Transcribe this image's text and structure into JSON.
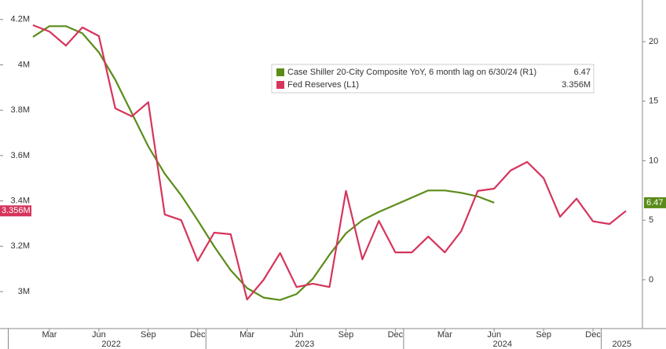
{
  "chart_data": {
    "type": "line",
    "x": [
      "2022-02",
      "2022-03",
      "2022-04",
      "2022-05",
      "2022-06",
      "2022-07",
      "2022-08",
      "2022-09",
      "2022-10",
      "2022-11",
      "2022-12",
      "2023-01",
      "2023-02",
      "2023-03",
      "2023-04",
      "2023-05",
      "2023-06",
      "2023-07",
      "2023-08",
      "2023-09",
      "2023-10",
      "2023-11",
      "2023-12",
      "2024-01",
      "2024-02",
      "2024-03",
      "2024-04",
      "2024-05",
      "2024-06",
      "2024-07",
      "2024-08",
      "2024-09",
      "2024-10",
      "2024-11",
      "2024-12",
      "2025-01",
      "2025-02"
    ],
    "xlim": [
      "2022-01",
      "2025-03"
    ],
    "xticks": [
      {
        "value": "2022-03",
        "label": "Mar"
      },
      {
        "value": "2022-06",
        "label": "Jun"
      },
      {
        "value": "2022-09",
        "label": "Sep"
      },
      {
        "value": "2022-12",
        "label": "Dec"
      },
      {
        "value": "2023-03",
        "label": "Mar"
      },
      {
        "value": "2023-06",
        "label": "Jun"
      },
      {
        "value": "2023-09",
        "label": "Sep"
      },
      {
        "value": "2023-12",
        "label": "Dec"
      },
      {
        "value": "2024-03",
        "label": "Mar"
      },
      {
        "value": "2024-06",
        "label": "Jun"
      },
      {
        "value": "2024-09",
        "label": "Sep"
      },
      {
        "value": "2024-12",
        "label": "Dec"
      }
    ],
    "years": [
      "2022",
      "2023",
      "2024",
      "2025"
    ],
    "ylim": [
      2.837,
      4.286
    ],
    "yticks": [
      {
        "value": 3,
        "label": "3M"
      },
      {
        "value": 3.2,
        "label": "3.2M"
      },
      {
        "value": 3.4,
        "label": "3.4M"
      },
      {
        "value": 3.6,
        "label": "3.6M"
      },
      {
        "value": 3.8,
        "label": "3.8M"
      },
      {
        "value": 4,
        "label": "4M"
      },
      {
        "value": 4.2,
        "label": "4.2M"
      }
    ],
    "y2lim": [
      -4.1,
      23.5
    ],
    "y2ticks": [
      0,
      5,
      10,
      15,
      20
    ],
    "grid": false,
    "series": [
      {
        "name": "Case Shiller 20-City Composite YoY, 6 month lag on 6/30/24 (R1)",
        "color": "#5b8c1a",
        "axis": "y2",
        "last_label": "6.47",
        "values": [
          20.4,
          21.3,
          21.3,
          20.7,
          19.1,
          16.8,
          14.0,
          11.2,
          8.9,
          7.1,
          5.0,
          2.8,
          0.8,
          -0.7,
          -1.5,
          -1.7,
          -1.2,
          0.1,
          2.1,
          3.9,
          5.0,
          5.7,
          6.3,
          6.9,
          7.5,
          7.5,
          7.3,
          7.0,
          6.47,
          null,
          null,
          null,
          null,
          null,
          null,
          null,
          null
        ]
      },
      {
        "name": "Fed Reserves (L1)",
        "color": "#d6345c",
        "axis": "y",
        "last_label": "3.356M",
        "values": [
          4.175,
          4.147,
          4.085,
          4.165,
          4.127,
          3.808,
          3.773,
          3.835,
          3.34,
          3.315,
          3.135,
          3.26,
          3.253,
          2.965,
          3.052,
          3.17,
          3.02,
          3.035,
          3.02,
          3.444,
          3.142,
          3.312,
          3.173,
          3.173,
          3.243,
          3.173,
          3.267,
          3.444,
          3.454,
          3.534,
          3.572,
          3.5,
          3.33,
          3.41,
          3.31,
          3.298,
          3.356
        ]
      }
    ]
  }
}
